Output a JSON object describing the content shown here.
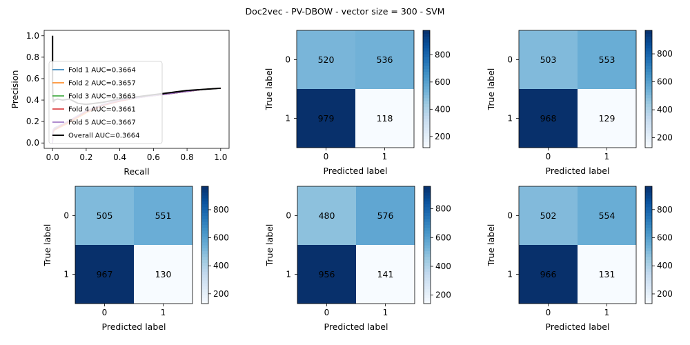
{
  "figure": {
    "suptitle": "Doc2vec - PV-DBOW - vector size = 300 - SVM"
  },
  "chart_data": [
    {
      "type": "line",
      "xlabel": "Recall",
      "ylabel": "Precision",
      "xlim": [
        -0.05,
        1.05
      ],
      "ylim": [
        -0.05,
        1.05
      ],
      "xticks": [
        "0.0",
        "0.2",
        "0.4",
        "0.6",
        "0.8",
        "1.0"
      ],
      "yticks": [
        "0.0",
        "0.2",
        "0.4",
        "0.6",
        "0.8",
        "1.0"
      ],
      "legend_position": "lower-left",
      "series": [
        {
          "name": "Fold 1 AUC=0.3664",
          "color": "#1f77b4",
          "x": [
            0,
            0.002,
            0.01,
            0.05,
            0.1,
            0.2,
            0.3,
            0.4,
            0.5,
            0.6,
            0.7,
            0.8,
            0.9,
            1.0
          ],
          "y": [
            0.0,
            0.1,
            0.13,
            0.16,
            0.2,
            0.29,
            0.35,
            0.39,
            0.42,
            0.44,
            0.46,
            0.48,
            0.5,
            0.51
          ]
        },
        {
          "name": "Fold 2 AUC=0.3657",
          "color": "#ff7f0e",
          "x": [
            0,
            0.002,
            0.01,
            0.05,
            0.1,
            0.2,
            0.3,
            0.4,
            0.5,
            0.6,
            0.7,
            0.8,
            0.9,
            1.0
          ],
          "y": [
            0.0,
            0.09,
            0.12,
            0.15,
            0.19,
            0.28,
            0.35,
            0.39,
            0.42,
            0.44,
            0.46,
            0.48,
            0.5,
            0.51
          ]
        },
        {
          "name": "Fold 3 AUC=0.3663",
          "color": "#2ca02c",
          "x": [
            0,
            0.002,
            0.01,
            0.05,
            0.1,
            0.2,
            0.3,
            0.4,
            0.5,
            0.6,
            0.7,
            0.8,
            0.9,
            1.0
          ],
          "y": [
            0.0,
            0.11,
            0.14,
            0.17,
            0.21,
            0.3,
            0.36,
            0.39,
            0.42,
            0.44,
            0.46,
            0.48,
            0.5,
            0.51
          ]
        },
        {
          "name": "Fold 4 AUC=0.3661",
          "color": "#d62728",
          "x": [
            0,
            0.002,
            0.01,
            0.05,
            0.1,
            0.2,
            0.3,
            0.4,
            0.5,
            0.6,
            0.7,
            0.8,
            0.9,
            1.0
          ],
          "y": [
            0.0,
            0.1,
            0.12,
            0.16,
            0.2,
            0.29,
            0.35,
            0.39,
            0.42,
            0.44,
            0.46,
            0.48,
            0.5,
            0.51
          ]
        },
        {
          "name": "Fold 5 AUC=0.3667",
          "color": "#9467bd",
          "x": [
            0,
            0.002,
            0.01,
            0.05,
            0.1,
            0.2,
            0.3,
            0.4,
            0.5,
            0.6,
            0.7,
            0.8,
            0.9,
            1.0
          ],
          "y": [
            0.0,
            0.12,
            0.14,
            0.17,
            0.21,
            0.3,
            0.36,
            0.4,
            0.42,
            0.44,
            0.46,
            0.48,
            0.5,
            0.51
          ]
        },
        {
          "name": "Overall AUC=0.3664",
          "color": "#000000",
          "x": [
            0,
            0.0,
            0.002,
            0.005,
            0.01,
            0.03,
            0.06,
            0.1,
            0.15,
            0.2,
            0.3,
            0.4,
            0.5,
            0.6,
            0.7,
            0.8,
            0.9,
            1.0
          ],
          "y": [
            1.0,
            0.55,
            0.42,
            0.38,
            0.4,
            0.41,
            0.4,
            0.41,
            0.37,
            0.36,
            0.38,
            0.41,
            0.43,
            0.45,
            0.47,
            0.49,
            0.5,
            0.51
          ]
        }
      ]
    },
    {
      "type": "heatmap",
      "xlabel": "Predicted label",
      "ylabel": "True label",
      "x_categories": [
        "0",
        "1"
      ],
      "y_categories": [
        "0",
        "1"
      ],
      "values": [
        [
          520,
          536
        ],
        [
          979,
          118
        ]
      ],
      "colorbar_ticks": [
        "200",
        "400",
        "600",
        "800"
      ],
      "colorbar_range": [
        118,
        979
      ],
      "colormap": "Blues"
    },
    {
      "type": "heatmap",
      "xlabel": "Predicted label",
      "ylabel": "True label",
      "x_categories": [
        "0",
        "1"
      ],
      "y_categories": [
        "0",
        "1"
      ],
      "values": [
        [
          503,
          553
        ],
        [
          968,
          129
        ]
      ],
      "colorbar_ticks": [
        "200",
        "400",
        "600",
        "800"
      ],
      "colorbar_range": [
        129,
        968
      ],
      "colormap": "Blues"
    },
    {
      "type": "heatmap",
      "xlabel": "Predicted label",
      "ylabel": "True label",
      "x_categories": [
        "0",
        "1"
      ],
      "y_categories": [
        "0",
        "1"
      ],
      "values": [
        [
          505,
          551
        ],
        [
          967,
          130
        ]
      ],
      "colorbar_ticks": [
        "200",
        "400",
        "600",
        "800"
      ],
      "colorbar_range": [
        130,
        967
      ],
      "colormap": "Blues"
    },
    {
      "type": "heatmap",
      "xlabel": "Predicted label",
      "ylabel": "True label",
      "x_categories": [
        "0",
        "1"
      ],
      "y_categories": [
        "0",
        "1"
      ],
      "values": [
        [
          480,
          576
        ],
        [
          956,
          141
        ]
      ],
      "colorbar_ticks": [
        "200",
        "400",
        "600",
        "800"
      ],
      "colorbar_range": [
        141,
        956
      ],
      "colormap": "Blues"
    },
    {
      "type": "heatmap",
      "xlabel": "Predicted label",
      "ylabel": "True label",
      "x_categories": [
        "0",
        "1"
      ],
      "y_categories": [
        "0",
        "1"
      ],
      "values": [
        [
          502,
          554
        ],
        [
          966,
          131
        ]
      ],
      "colorbar_ticks": [
        "200",
        "400",
        "600",
        "800"
      ],
      "colorbar_range": [
        131,
        966
      ],
      "colormap": "Blues"
    }
  ]
}
